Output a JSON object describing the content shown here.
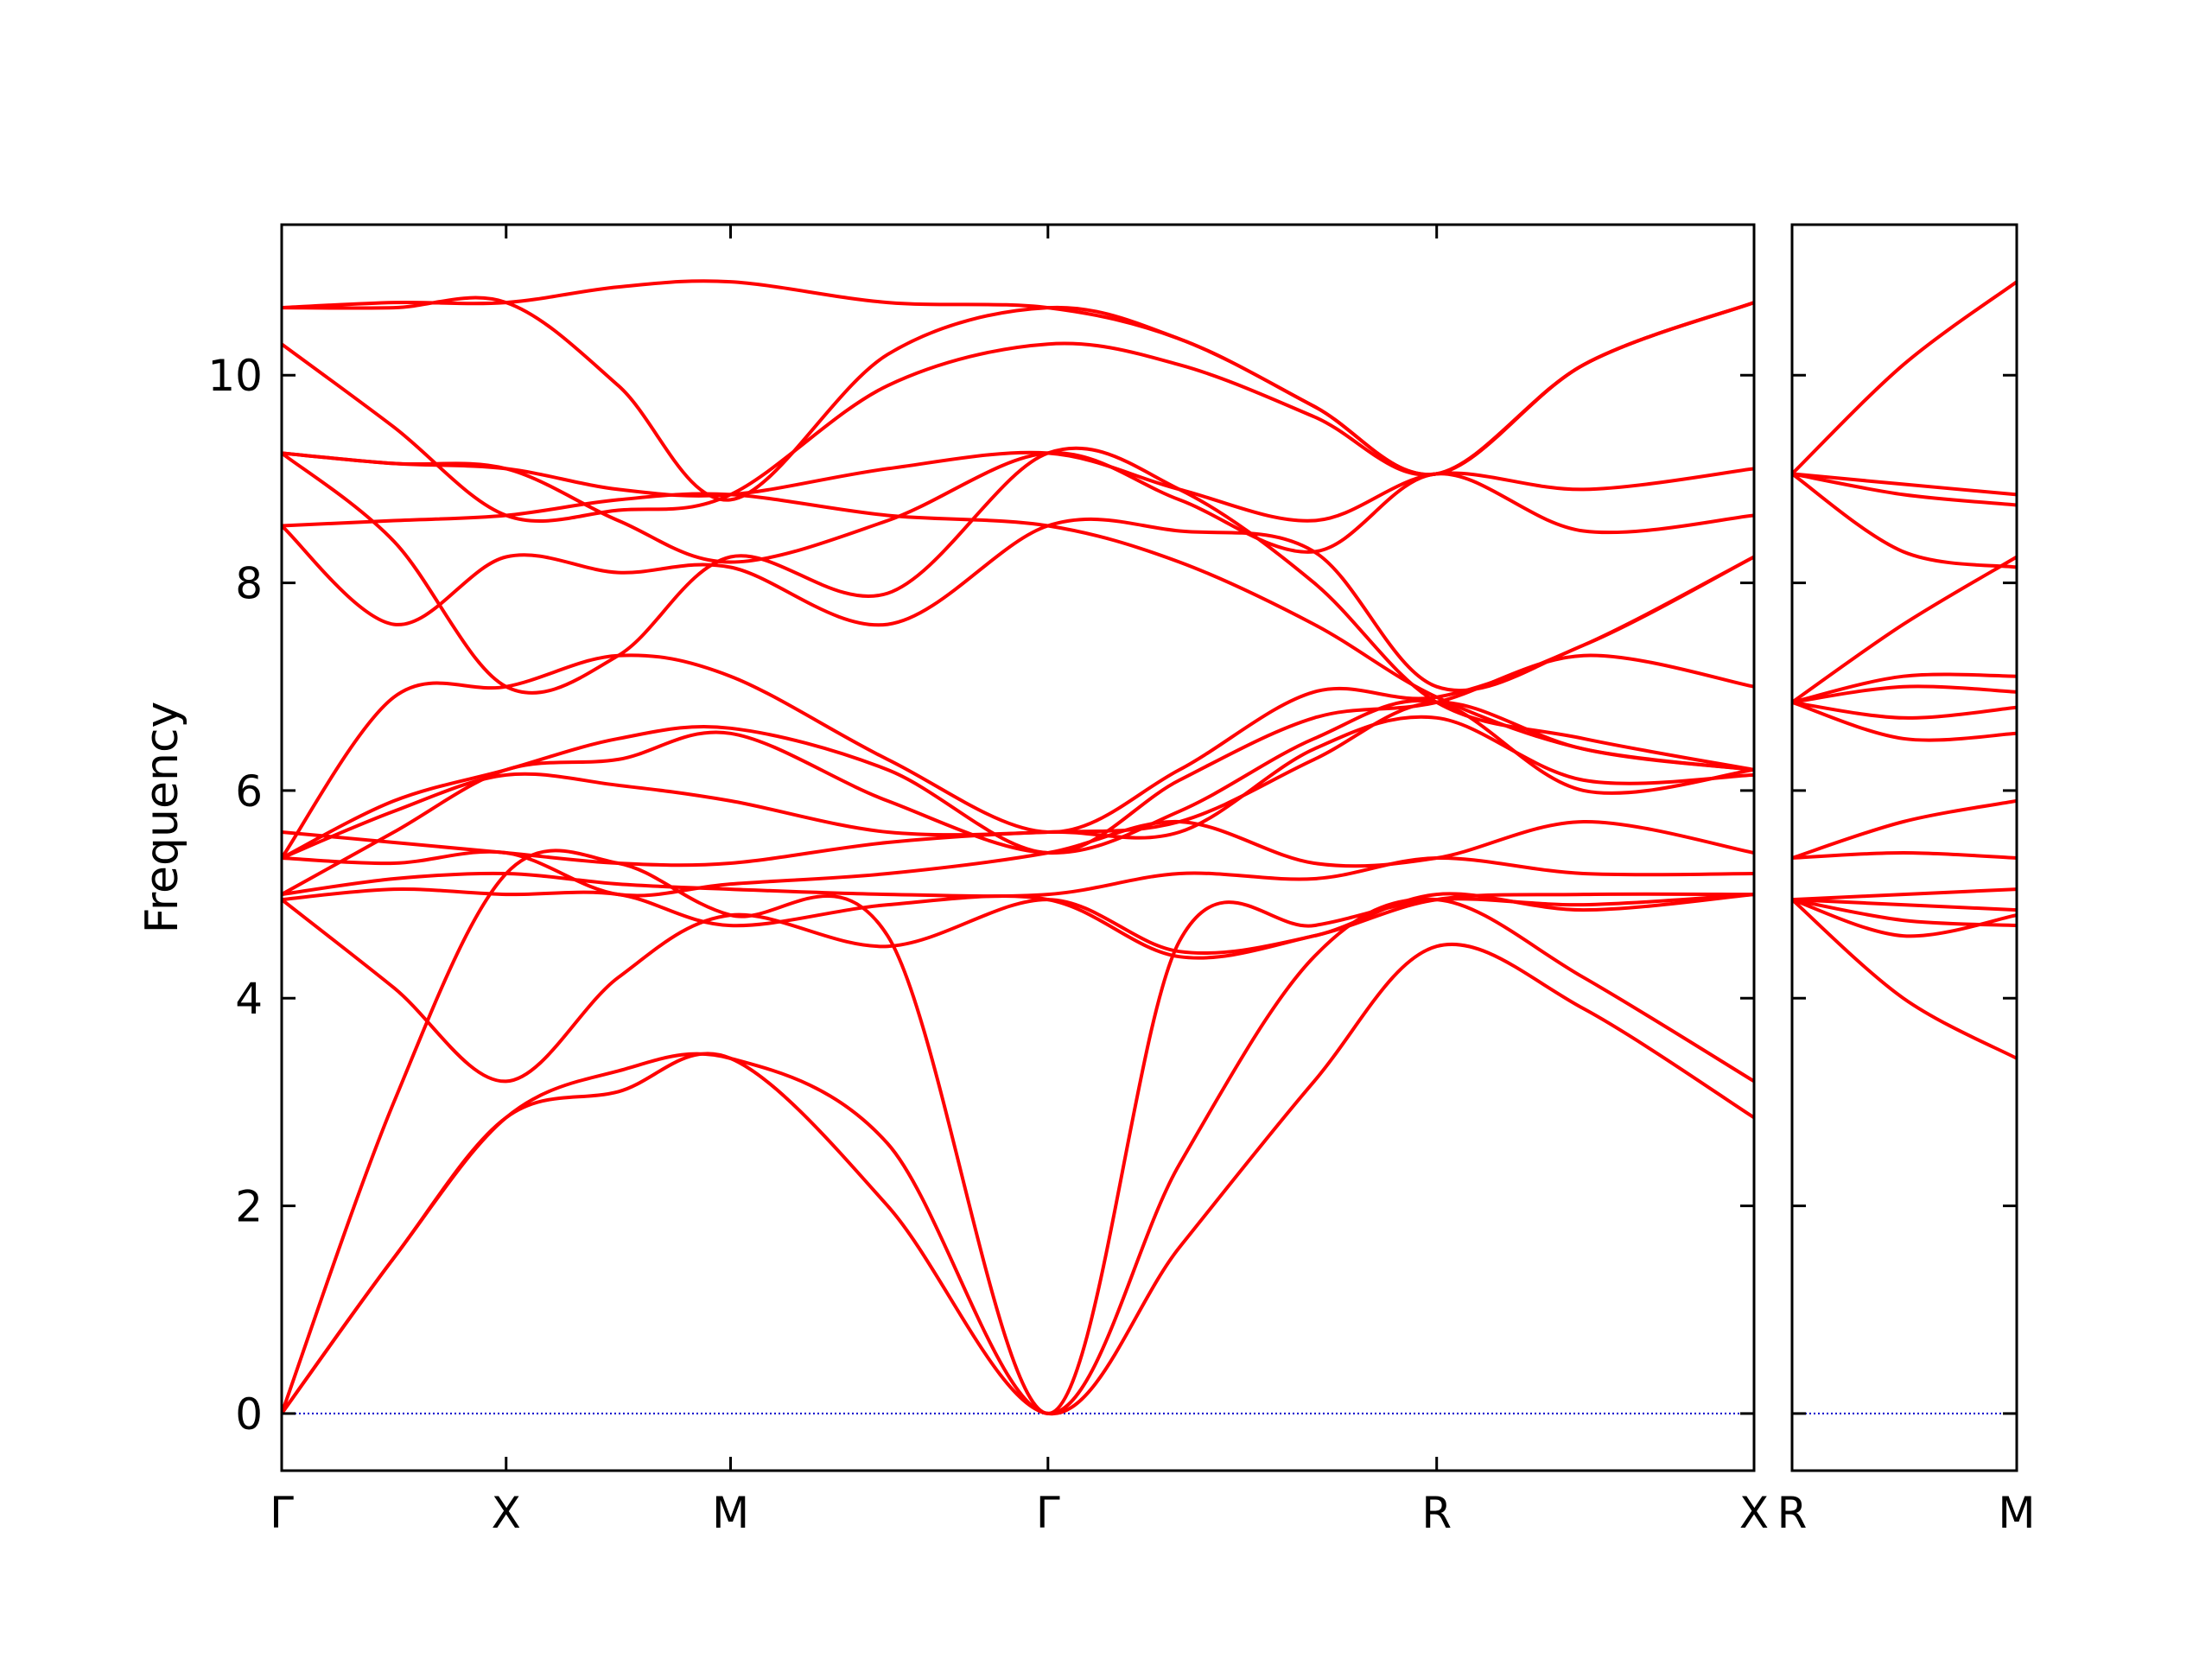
{
  "chart_data": {
    "type": "line",
    "title": "",
    "xlabel": "",
    "ylabel": "Frequency",
    "ylim": [
      -0.55,
      11.45
    ],
    "yticks": [
      0,
      2,
      4,
      6,
      8,
      10
    ],
    "grid": false,
    "legend": "none",
    "line_color": "#ff0000",
    "zero_line_color": "#0000cc",
    "panels": [
      {
        "name": "main",
        "xticks": [
          {
            "label": "Γ",
            "x": 0
          },
          {
            "label": "X",
            "x": 0.5
          },
          {
            "label": "M",
            "x": 1.0
          },
          {
            "label": "Γ",
            "x": 1.707
          },
          {
            "label": "R",
            "x": 2.573
          },
          {
            "label": "X",
            "x": 3.28
          }
        ],
        "xlim": [
          0,
          3.28
        ],
        "bands": [
          {
            "x": [
              0,
              0.25,
              0.5,
              0.75,
              1.0,
              1.35,
              1.707,
              2.0,
              2.3,
              2.573,
              2.9,
              3.28
            ],
            "y": [
              0,
              1.5,
              2.85,
              3.1,
              3.42,
              2.0,
              0,
              1.6,
              3.2,
              4.5,
              3.9,
              2.85
            ]
          },
          {
            "x": [
              0,
              0.25,
              0.5,
              0.75,
              1.0,
              1.35,
              1.707,
              2.0,
              2.3,
              2.573,
              2.9,
              3.28
            ],
            "y": [
              0,
              1.5,
              2.85,
              3.3,
              3.42,
              2.6,
              0,
              2.4,
              4.4,
              4.95,
              4.2,
              3.2
            ]
          },
          {
            "x": [
              0,
              0.25,
              0.5,
              0.75,
              1.0,
              1.35,
              1.707,
              2.0,
              2.3,
              2.573,
              2.9,
              3.28
            ],
            "y": [
              0,
              3.0,
              5.2,
              5.3,
              4.8,
              4.6,
              0,
              4.55,
              4.7,
              4.95,
              4.9,
              5.0
            ]
          },
          {
            "x": [
              0,
              0.25,
              0.5,
              0.75,
              1.0,
              1.35,
              1.707,
              2.0,
              2.3,
              2.573,
              2.9,
              3.28
            ],
            "y": [
              4.95,
              4.1,
              3.2,
              4.2,
              4.8,
              4.5,
              4.95,
              4.45,
              4.6,
              5.0,
              4.85,
              5.0
            ]
          },
          {
            "x": [
              0,
              0.25,
              0.5,
              0.75,
              1.0,
              1.35,
              1.707,
              2.0,
              2.3,
              2.573,
              2.9,
              3.28
            ],
            "y": [
              4.95,
              5.05,
              5.0,
              5.0,
              4.7,
              4.9,
              4.95,
              4.4,
              4.6,
              4.95,
              5.0,
              5.0
            ]
          },
          {
            "x": [
              0,
              0.25,
              0.5,
              0.75,
              1.0,
              1.35,
              1.707,
              2.0,
              2.3,
              2.573,
              2.9,
              3.28
            ],
            "y": [
              5.0,
              5.15,
              5.2,
              5.1,
              5.05,
              5.0,
              5.0,
              5.2,
              5.15,
              5.35,
              5.2,
              5.2
            ]
          },
          {
            "x": [
              0,
              0.25,
              0.5,
              0.75,
              1.0,
              1.35,
              1.707,
              2.0,
              2.3,
              2.573,
              2.9,
              3.28
            ],
            "y": [
              5.35,
              5.3,
              5.4,
              5.0,
              5.1,
              5.2,
              5.4,
              5.7,
              5.3,
              5.35,
              5.7,
              5.4
            ]
          },
          {
            "x": [
              0,
              0.25,
              0.5,
              0.75,
              1.0,
              1.35,
              1.707,
              2.0,
              2.3,
              2.573,
              2.9,
              3.28
            ],
            "y": [
              5.6,
              5.5,
              5.4,
              5.3,
              5.3,
              5.5,
              5.6,
              5.6,
              6.4,
              6.7,
              6.1,
              6.15
            ]
          },
          {
            "x": [
              0,
              0.25,
              0.5,
              0.75,
              1.0,
              1.35,
              1.707,
              2.0,
              2.3,
              2.573,
              2.9,
              3.28
            ],
            "y": [
              5.35,
              5.8,
              6.15,
              6.05,
              5.9,
              5.6,
              5.6,
              5.7,
              6.3,
              6.85,
              6.4,
              6.2
            ]
          },
          {
            "x": [
              0,
              0.25,
              0.5,
              0.75,
              1.0,
              1.35,
              1.707,
              2.0,
              2.3,
              2.573,
              2.9,
              3.28
            ],
            "y": [
              5.0,
              5.6,
              6.2,
              6.3,
              6.55,
              5.9,
              5.4,
              5.8,
              6.5,
              6.85,
              6.0,
              6.2
            ]
          },
          {
            "x": [
              0,
              0.25,
              0.5,
              0.75,
              1.0,
              1.35,
              1.707,
              2.0,
              2.3,
              2.573,
              2.9,
              3.28
            ],
            "y": [
              5.35,
              5.9,
              6.2,
              6.5,
              6.6,
              6.2,
              5.4,
              6.1,
              6.7,
              6.85,
              7.3,
              7.0
            ]
          },
          {
            "x": [
              0,
              0.25,
              0.5,
              0.75,
              1.0,
              1.35,
              1.707,
              2.0,
              2.3,
              2.573,
              2.9,
              3.28
            ],
            "y": [
              5.35,
              6.9,
              7.0,
              7.3,
              7.1,
              6.3,
              5.6,
              6.2,
              6.95,
              6.9,
              7.4,
              8.25
            ]
          },
          {
            "x": [
              0,
              0.25,
              0.5,
              0.75,
              1.0,
              1.35,
              1.707,
              2.0,
              2.3,
              2.573,
              2.9,
              3.28
            ],
            "y": [
              8.55,
              7.6,
              8.25,
              8.1,
              8.15,
              7.6,
              8.55,
              8.5,
              8.3,
              7.0,
              7.4,
              8.25
            ]
          },
          {
            "x": [
              0,
              0.25,
              0.5,
              0.75,
              1.0,
              1.35,
              1.707,
              2.0,
              2.3,
              2.573,
              2.9,
              3.28
            ],
            "y": [
              8.55,
              8.6,
              8.65,
              8.8,
              8.85,
              8.65,
              8.55,
              8.2,
              7.6,
              6.9,
              6.4,
              6.2
            ]
          },
          {
            "x": [
              0,
              0.25,
              0.5,
              0.75,
              1.0,
              1.35,
              1.707,
              2.0,
              2.3,
              2.573,
              2.9,
              3.28
            ],
            "y": [
              9.25,
              8.4,
              7.0,
              7.3,
              8.25,
              7.9,
              9.25,
              8.9,
              8.0,
              6.85,
              6.5,
              6.2
            ]
          },
          {
            "x": [
              0,
              0.25,
              0.5,
              0.75,
              1.0,
              1.35,
              1.707,
              2.0,
              2.3,
              2.573,
              2.9,
              3.28
            ],
            "y": [
              9.25,
              9.15,
              9.1,
              8.6,
              8.2,
              8.6,
              9.25,
              8.8,
              8.3,
              9.05,
              8.5,
              8.65
            ]
          },
          {
            "x": [
              0,
              0.25,
              0.5,
              0.75,
              1.0,
              1.35,
              1.707,
              2.0,
              2.3,
              2.573,
              2.9,
              3.28
            ],
            "y": [
              9.25,
              9.15,
              9.1,
              8.9,
              8.85,
              9.1,
              9.25,
              8.9,
              8.6,
              9.05,
              8.9,
              9.1
            ]
          },
          {
            "x": [
              0,
              0.25,
              0.5,
              0.75,
              1.0,
              1.35,
              1.707,
              2.0,
              2.3,
              2.573,
              2.9,
              3.28
            ],
            "y": [
              10.3,
              9.5,
              8.65,
              8.7,
              8.85,
              9.9,
              10.3,
              10.1,
              9.6,
              9.05,
              10.1,
              10.7
            ]
          },
          {
            "x": [
              0,
              0.25,
              0.5,
              0.75,
              1.0,
              1.35,
              1.707,
              2.0,
              2.3,
              2.573,
              2.9,
              3.28
            ],
            "y": [
              10.65,
              10.65,
              10.7,
              9.9,
              8.8,
              10.2,
              10.65,
              10.35,
              9.7,
              9.05,
              10.1,
              10.7
            ]
          },
          {
            "x": [
              0,
              0.25,
              0.5,
              0.75,
              1.0,
              1.35,
              1.707,
              2.0,
              2.3,
              2.573,
              2.9,
              3.28
            ],
            "y": [
              10.65,
              10.7,
              10.7,
              10.85,
              10.9,
              10.7,
              10.65,
              10.35,
              9.7,
              9.05,
              10.1,
              10.7
            ]
          }
        ]
      },
      {
        "name": "right",
        "xticks": [
          {
            "label": "R",
            "x": 0
          },
          {
            "label": "M",
            "x": 0.707
          }
        ],
        "xlim": [
          0,
          0.707
        ],
        "bands": [
          {
            "x": [
              0,
              0.35,
              0.707
            ],
            "y": [
              4.95,
              4.0,
              3.42
            ]
          },
          {
            "x": [
              0,
              0.35,
              0.707
            ],
            "y": [
              4.95,
              4.6,
              4.8
            ]
          },
          {
            "x": [
              0,
              0.35,
              0.707
            ],
            "y": [
              4.95,
              4.75,
              4.7
            ]
          },
          {
            "x": [
              0,
              0.35,
              0.707
            ],
            "y": [
              4.95,
              4.9,
              4.85
            ]
          },
          {
            "x": [
              0,
              0.35,
              0.707
            ],
            "y": [
              4.95,
              5.0,
              5.05
            ]
          },
          {
            "x": [
              0,
              0.35,
              0.707
            ],
            "y": [
              5.35,
              5.4,
              5.35
            ]
          },
          {
            "x": [
              0,
              0.35,
              0.707
            ],
            "y": [
              5.35,
              5.7,
              5.9
            ]
          },
          {
            "x": [
              0,
              0.35,
              0.707
            ],
            "y": [
              6.85,
              6.5,
              6.55
            ]
          },
          {
            "x": [
              0,
              0.35,
              0.707
            ],
            "y": [
              6.85,
              6.7,
              6.8
            ]
          },
          {
            "x": [
              0,
              0.35,
              0.707
            ],
            "y": [
              6.85,
              7.0,
              6.95
            ]
          },
          {
            "x": [
              0,
              0.35,
              0.707
            ],
            "y": [
              6.85,
              7.1,
              7.1
            ]
          },
          {
            "x": [
              0,
              0.35,
              0.707
            ],
            "y": [
              6.85,
              7.6,
              8.25
            ]
          },
          {
            "x": [
              0,
              0.35,
              0.707
            ],
            "y": [
              9.05,
              8.3,
              8.15
            ]
          },
          {
            "x": [
              0,
              0.35,
              0.707
            ],
            "y": [
              9.05,
              8.85,
              8.75
            ]
          },
          {
            "x": [
              0,
              0.35,
              0.707
            ],
            "y": [
              9.05,
              8.95,
              8.85
            ]
          },
          {
            "x": [
              0,
              0.35,
              0.707
            ],
            "y": [
              9.05,
              10.1,
              10.9
            ]
          }
        ]
      }
    ]
  }
}
